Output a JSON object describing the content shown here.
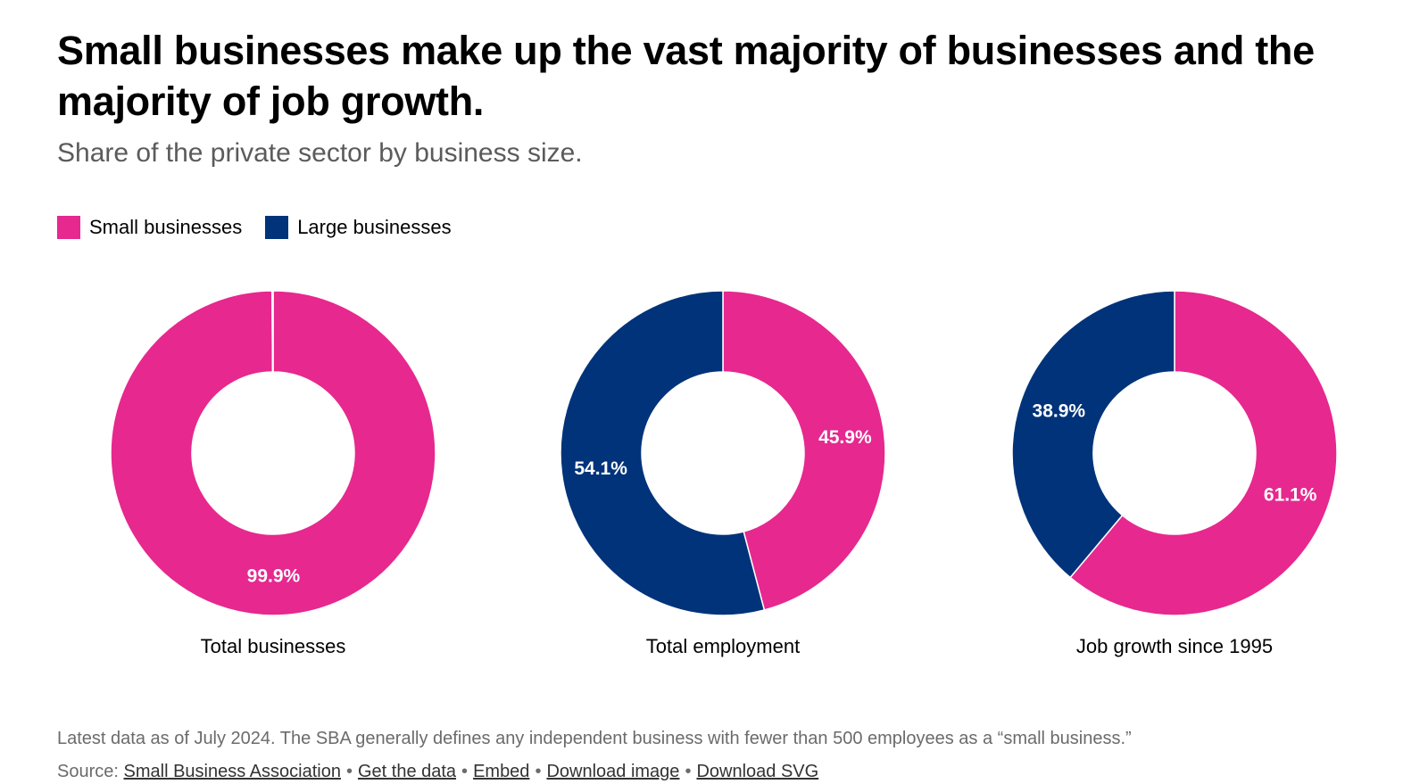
{
  "title": "Small businesses make up the vast majority of businesses and the majority of job growth.",
  "subtitle": "Share of the private sector by business size.",
  "legend": [
    {
      "label": "Small businesses",
      "color": "#e6288f"
    },
    {
      "label": "Large businesses",
      "color": "#00337a"
    }
  ],
  "chart_data": [
    {
      "type": "pie",
      "donut": true,
      "title": "Total businesses",
      "slices": [
        {
          "name": "Small businesses",
          "value": 99.9,
          "label": "99.9%",
          "color": "#e6288f"
        },
        {
          "name": "Large businesses",
          "value": 0.1,
          "label": "",
          "color": "#00337a"
        }
      ]
    },
    {
      "type": "pie",
      "donut": true,
      "title": "Total employment",
      "slices": [
        {
          "name": "Small businesses",
          "value": 45.9,
          "label": "45.9%",
          "color": "#e6288f"
        },
        {
          "name": "Large businesses",
          "value": 54.1,
          "label": "54.1%",
          "color": "#00337a"
        }
      ]
    },
    {
      "type": "pie",
      "donut": true,
      "title": "Job growth since 1995",
      "slices": [
        {
          "name": "Small businesses",
          "value": 61.1,
          "label": "61.1%",
          "color": "#e6288f"
        },
        {
          "name": "Large businesses",
          "value": 38.9,
          "label": "38.9%",
          "color": "#00337a"
        }
      ]
    }
  ],
  "footnote": "Latest data as of July 2024. The SBA generally defines any independent business with fewer than 500 employees as a “small business.”",
  "source": {
    "prefix": "Source:",
    "links": [
      "Small Business Association",
      "Get the data",
      "Embed",
      "Download image",
      "Download SVG"
    ],
    "separator": "•"
  }
}
